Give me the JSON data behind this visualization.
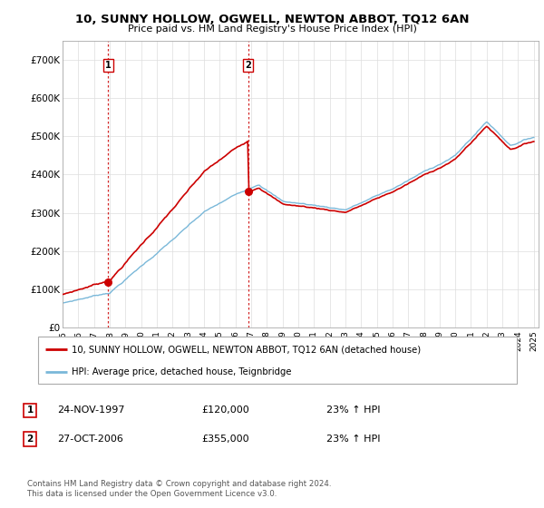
{
  "title": "10, SUNNY HOLLOW, OGWELL, NEWTON ABBOT, TQ12 6AN",
  "subtitle": "Price paid vs. HM Land Registry's House Price Index (HPI)",
  "sale1_date": "24-NOV-1997",
  "sale1_price": 120000,
  "sale1_hpi": "23% ↑ HPI",
  "sale2_date": "27-OCT-2006",
  "sale2_price": 355000,
  "sale2_hpi": "23% ↑ HPI",
  "legend_line1": "10, SUNNY HOLLOW, OGWELL, NEWTON ABBOT, TQ12 6AN (detached house)",
  "legend_line2": "HPI: Average price, detached house, Teignbridge",
  "footer": "Contains HM Land Registry data © Crown copyright and database right 2024.\nThis data is licensed under the Open Government Licence v3.0.",
  "hpi_color": "#7ab8d9",
  "price_color": "#cc0000",
  "vline_color": "#cc0000",
  "dot_color": "#cc0000",
  "ylim_min": 0,
  "ylim_max": 750000,
  "sale1_year": 1997.9,
  "sale2_year": 2006.83,
  "price1": 120000,
  "price2": 355000
}
